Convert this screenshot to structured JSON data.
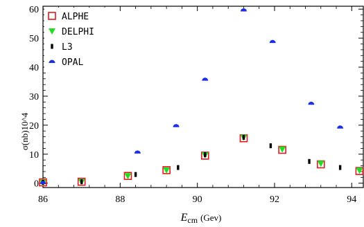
{
  "chart_data": {
    "type": "scatter",
    "title": "",
    "xlabel": "E_cm (Gev)",
    "xlabel_main": "E",
    "xlabel_sub": "cm",
    "xlabel_unit": "(Gev)",
    "ylabel": "σ(nb)10^4",
    "xlim": [
      86,
      94.3
    ],
    "ylim": [
      -1.5,
      61
    ],
    "x_ticks": [
      86,
      88,
      90,
      92,
      94
    ],
    "y_ticks": [
      0,
      10,
      20,
      30,
      40,
      50,
      60
    ],
    "grid": false,
    "legend_position": "top-left",
    "series": [
      {
        "name": "ALPHE",
        "marker": "open-square",
        "color": "#e0191f",
        "x": [
          86.0,
          87.0,
          88.2,
          89.2,
          90.2,
          91.2,
          92.2,
          93.2,
          94.2
        ],
        "y": [
          0.3,
          0.5,
          2.5,
          4.5,
          9.5,
          15.5,
          11.5,
          6.5,
          4.2
        ]
      },
      {
        "name": "DELPHI",
        "marker": "triangle-down",
        "color": "#22dd22",
        "x": [
          86.0,
          87.0,
          88.2,
          89.2,
          90.2,
          91.2,
          92.2,
          93.2,
          94.2
        ],
        "y": [
          0.3,
          0.5,
          2.5,
          4.5,
          9.7,
          15.8,
          11.7,
          6.8,
          4.4
        ]
      },
      {
        "name": "L3",
        "marker": "bar",
        "color": "#000000",
        "x": [
          86.0,
          87.0,
          88.4,
          89.5,
          90.2,
          91.2,
          91.9,
          92.9,
          93.7
        ],
        "y": [
          0.3,
          0.5,
          3.0,
          5.4,
          9.8,
          15.8,
          12.9,
          7.5,
          5.4
        ]
      },
      {
        "name": "OPAL",
        "marker": "half-disk",
        "color": "#1e2ee6",
        "x": [
          86.0,
          88.45,
          89.45,
          90.2,
          91.2,
          91.95,
          92.95,
          93.7
        ],
        "y": [
          0.2,
          10.7,
          19.8,
          35.8,
          59.7,
          48.8,
          27.5,
          19.3
        ]
      }
    ]
  }
}
